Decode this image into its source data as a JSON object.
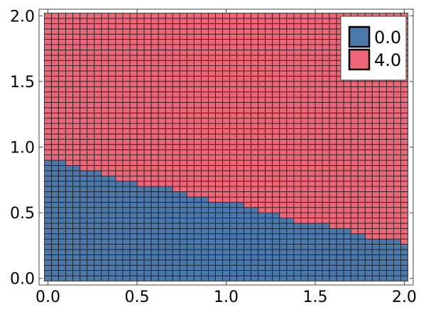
{
  "chart_data": {
    "type": "heatmap",
    "title": "",
    "xlabel": "",
    "ylabel": "",
    "xlim": [
      -0.05,
      2.05
    ],
    "ylim": [
      -0.05,
      2.05
    ],
    "x_cell_start": 0.0,
    "x_cell_width": 0.04,
    "x_cell_count": 51,
    "y_cell_start": 0.0,
    "y_cell_height": 0.04,
    "y_cell_count": 51,
    "xticks": [
      "0.0",
      "0.5",
      "1.0",
      "1.5",
      "2.0"
    ],
    "yticks": [
      "0.0",
      "0.5",
      "1.0",
      "1.5",
      "2.0"
    ],
    "categories": [
      {
        "name": "0.0",
        "color": "#4a79ad"
      },
      {
        "name": "4.0",
        "color": "#ee6677"
      }
    ],
    "boundary": {
      "description_values": "upper y of the 0.0 region for each column starting x",
      "x": [
        0.0,
        0.1,
        0.2,
        0.3,
        0.4,
        0.5,
        0.6,
        0.7,
        0.8,
        0.9,
        1.0,
        1.1,
        1.2,
        1.3,
        1.4,
        1.5,
        1.6,
        1.7,
        1.8,
        1.9,
        2.0
      ],
      "y": [
        0.92,
        0.88,
        0.84,
        0.8,
        0.76,
        0.72,
        0.7,
        0.68,
        0.64,
        0.6,
        0.58,
        0.56,
        0.52,
        0.48,
        0.44,
        0.42,
        0.4,
        0.36,
        0.32,
        0.3,
        0.28
      ]
    },
    "grid": false,
    "legend_position": "top-right"
  }
}
